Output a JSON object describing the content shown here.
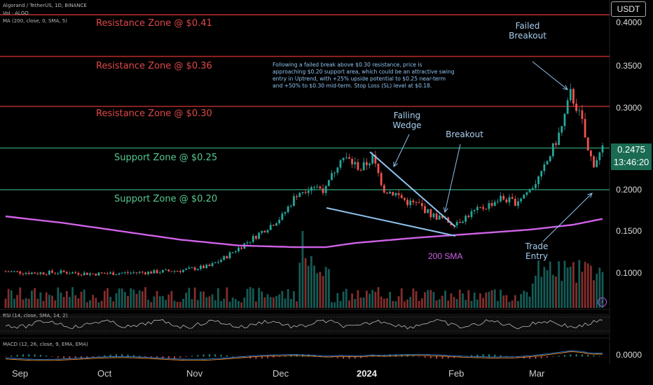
{
  "header": {
    "symbol_line": "Algorand / TetherUS, 1D, BINANCE",
    "vol_line": "Vol · ALGO",
    "ma_line": "MA (200, close, 0, SMA, 5)"
  },
  "currency_badge": "USDT",
  "current_price": {
    "value": "0.2475",
    "countdown": "13:46:20"
  },
  "zones": [
    {
      "label": "Resistance Zone @ $0.41",
      "kind": "resistance",
      "price": 0.41
    },
    {
      "label": "Resistance Zone @ $0.36",
      "kind": "resistance",
      "price": 0.36
    },
    {
      "label": "Resistance Zone @ $0.30",
      "kind": "resistance",
      "price": 0.3
    },
    {
      "label": "Support Zone @ $0.25",
      "kind": "support",
      "price": 0.25
    },
    {
      "label": "Support Zone @ $0.20",
      "kind": "support",
      "price": 0.2
    }
  ],
  "annotations": {
    "failed_breakout": "Failed\nBreakout",
    "falling_wedge": "Falling\nWedge",
    "breakout": "Breakout",
    "trade_entry": "Trade\nEntry",
    "sma_label": "200 SMA",
    "note": "Following a failed break above $0.30 resistance, price is approaching $0.20 support area, which could be an attractive swing entry in Uptrend, with +25% upside potential to $0.25 near-term and +50% to $0.30 mid-term. Stop Loss (SL) level at $0.18."
  },
  "indicators": {
    "rsi_label": "RSI (14, close, SMA, 14, 2)",
    "macd_label": "MACD (12, 26, close, 9, EMA, EMA)",
    "macd_tick": "0.0000"
  },
  "colors": {
    "up": "#26a69a",
    "down": "#ef5350",
    "sma": "#d062e8",
    "resistance": "#b22a2a",
    "support": "#2a8a67",
    "annotation": "#8fc3ef"
  },
  "chart_data": {
    "type": "candlestick",
    "title": "Algorand / TetherUS, 1D, BINANCE",
    "y_ticks": [
      "0.4000",
      "0.3500",
      "0.3000",
      "0.2000",
      "0.1500",
      "0.1000"
    ],
    "x_ticks": [
      "Sep",
      "Oct",
      "Nov",
      "Dec",
      "2024",
      "Feb",
      "Mar"
    ],
    "ylim": [
      0.06,
      0.43
    ],
    "x_months": [
      "Sep 2023",
      "Oct 2023",
      "Nov 2023",
      "Dec 2023",
      "Jan 2024",
      "Feb 2024",
      "Mar 2024"
    ],
    "close_path": [
      [
        0,
        0.102
      ],
      [
        10,
        0.1
      ],
      [
        20,
        0.101
      ],
      [
        30,
        0.099
      ],
      [
        40,
        0.1
      ],
      [
        50,
        0.101
      ],
      [
        60,
        0.103
      ],
      [
        70,
        0.108
      ],
      [
        75,
        0.118
      ],
      [
        80,
        0.13
      ],
      [
        85,
        0.142
      ],
      [
        90,
        0.155
      ],
      [
        95,
        0.168
      ],
      [
        100,
        0.195
      ],
      [
        105,
        0.205
      ],
      [
        110,
        0.2
      ],
      [
        115,
        0.24
      ],
      [
        118,
        0.235
      ],
      [
        122,
        0.225
      ],
      [
        126,
        0.238
      ],
      [
        130,
        0.2
      ],
      [
        134,
        0.195
      ],
      [
        138,
        0.185
      ],
      [
        142,
        0.182
      ],
      [
        146,
        0.17
      ],
      [
        150,
        0.165
      ],
      [
        153,
        0.16
      ],
      [
        156,
        0.163
      ],
      [
        160,
        0.172
      ],
      [
        165,
        0.18
      ],
      [
        170,
        0.19
      ],
      [
        175,
        0.185
      ],
      [
        180,
        0.2
      ],
      [
        184,
        0.218
      ],
      [
        188,
        0.25
      ],
      [
        191,
        0.275
      ],
      [
        194,
        0.315
      ],
      [
        196,
        0.3
      ],
      [
        198,
        0.28
      ],
      [
        200,
        0.245
      ],
      [
        202,
        0.232
      ],
      [
        205,
        0.248
      ]
    ],
    "sma_200": [
      [
        0,
        0.168
      ],
      [
        20,
        0.16
      ],
      [
        40,
        0.15
      ],
      [
        60,
        0.14
      ],
      [
        80,
        0.133
      ],
      [
        100,
        0.131
      ],
      [
        110,
        0.131
      ],
      [
        120,
        0.136
      ],
      [
        140,
        0.142
      ],
      [
        160,
        0.147
      ],
      [
        180,
        0.152
      ],
      [
        195,
        0.158
      ],
      [
        205,
        0.165
      ]
    ]
  }
}
